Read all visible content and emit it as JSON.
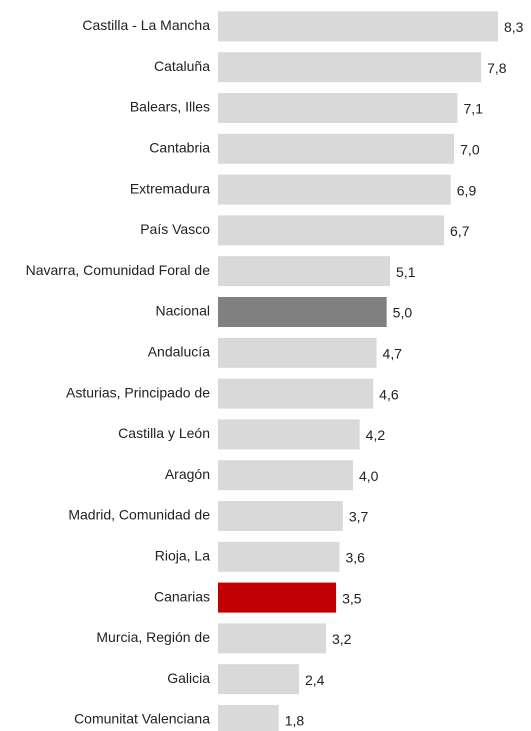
{
  "chart_data": {
    "type": "bar",
    "orientation": "horizontal",
    "categories": [
      "Castilla - La Mancha",
      "Cataluña",
      "Balears, Illes",
      "Cantabria",
      "Extremadura",
      "País Vasco",
      "Navarra, Comunidad Foral de",
      "Nacional",
      "Andalucía",
      "Asturias, Principado de",
      "Castilla y León",
      "Aragón",
      "Madrid, Comunidad de",
      "Rioja, La",
      "Canarias",
      "Murcia, Región de",
      "Galicia",
      "Comunitat Valenciana"
    ],
    "values": [
      8.3,
      7.8,
      7.1,
      7.0,
      6.9,
      6.7,
      5.1,
      5.0,
      4.7,
      4.6,
      4.2,
      4.0,
      3.7,
      3.6,
      3.5,
      3.2,
      2.4,
      1.8
    ],
    "value_labels": [
      "8,3",
      "7,8",
      "7,1",
      "7,0",
      "6,9",
      "6,7",
      "5,1",
      "5,0",
      "4,7",
      "4,6",
      "4,2",
      "4,0",
      "3,7",
      "3,6",
      "3,5",
      "3,2",
      "2,4",
      "1,8"
    ],
    "colors": [
      "#d9d9d9",
      "#d9d9d9",
      "#d9d9d9",
      "#d9d9d9",
      "#d9d9d9",
      "#d9d9d9",
      "#d9d9d9",
      "#808080",
      "#d9d9d9",
      "#d9d9d9",
      "#d9d9d9",
      "#d9d9d9",
      "#d9d9d9",
      "#d9d9d9",
      "#c00000",
      "#d9d9d9",
      "#d9d9d9",
      "#d9d9d9"
    ]
  }
}
